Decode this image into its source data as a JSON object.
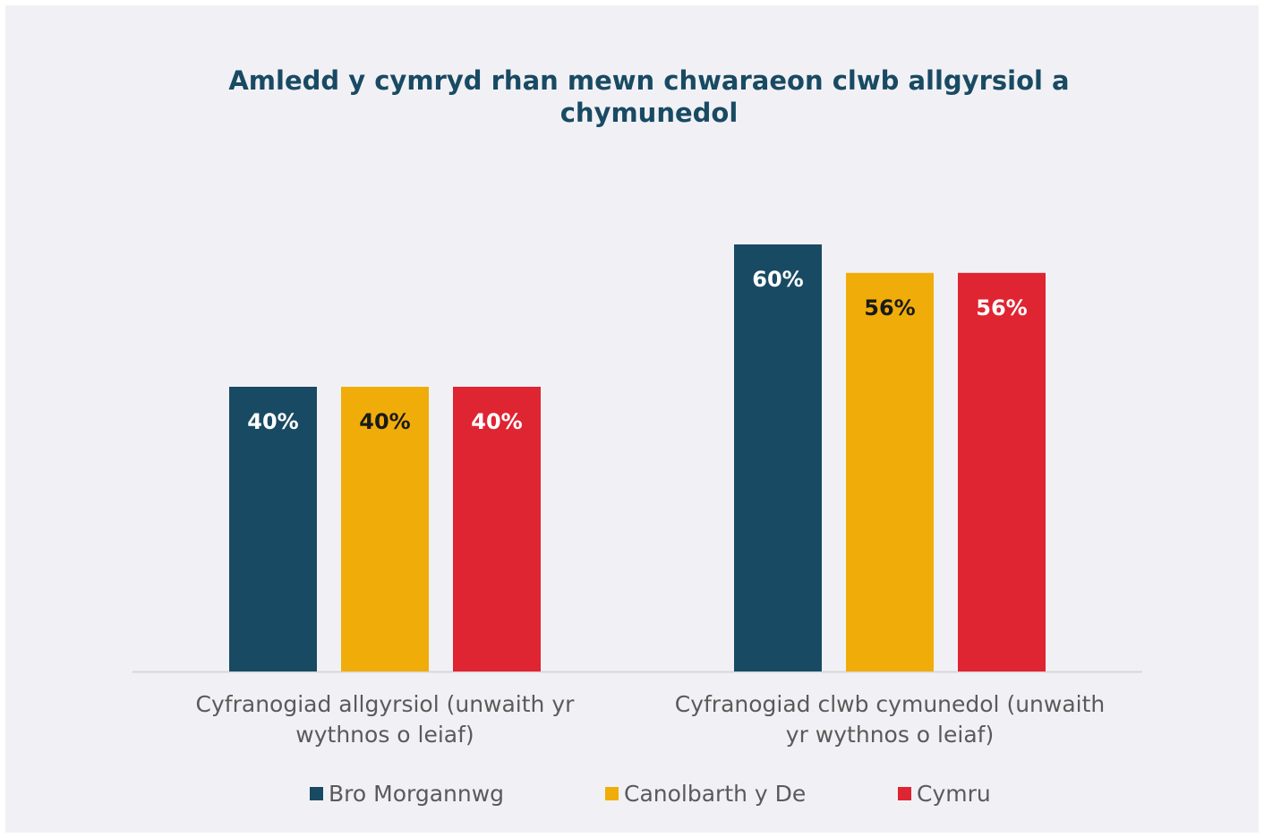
{
  "chart_data": {
    "type": "bar",
    "title": "Amledd y cymryd rhan mewn chwaraeon clwb allgyrsiol a chymunedol",
    "title_lines": [
      "Amledd y cymryd rhan mewn chwaraeon clwb allgyrsiol a",
      "chymunedol"
    ],
    "categories": [
      "Cyfranogiad allgyrsiol (unwaith yr wythnos o leiaf)",
      "Cyfranogiad clwb cymunedol (unwaith yr wythnos o leiaf)"
    ],
    "category_lines": [
      [
        "Cyfranogiad allgyrsiol (unwaith yr",
        "wythnos o leiaf)"
      ],
      [
        "Cyfranogiad clwb cymunedol (unwaith",
        "yr wythnos o leiaf)"
      ]
    ],
    "series": [
      {
        "name": "Bro Morgannwg",
        "values": [
          40,
          60
        ],
        "labels": [
          "40%",
          "60%"
        ],
        "color": "#194a63",
        "label_color": "#ffffff"
      },
      {
        "name": "Canolbarth y De",
        "values": [
          40,
          56
        ],
        "labels": [
          "40%",
          "56%"
        ],
        "color": "#f0ad0a",
        "label_color": "#1a1a1a"
      },
      {
        "name": "Cymru",
        "values": [
          40,
          56
        ],
        "labels": [
          "40%",
          "56%"
        ],
        "color": "#df2432",
        "label_color": "#ffffff"
      }
    ],
    "ylim": [
      0,
      64
    ],
    "grid": false,
    "legend_position": "bottom",
    "xlabel": "",
    "ylabel": ""
  }
}
